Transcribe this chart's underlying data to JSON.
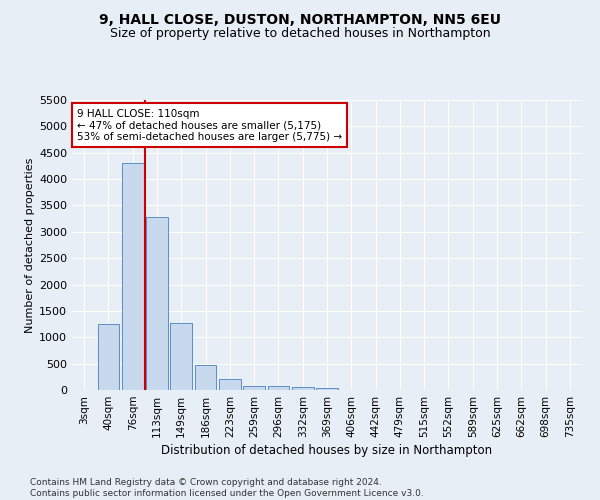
{
  "title1": "9, HALL CLOSE, DUSTON, NORTHAMPTON, NN5 6EU",
  "title2": "Size of property relative to detached houses in Northampton",
  "xlabel": "Distribution of detached houses by size in Northampton",
  "ylabel": "Number of detached properties",
  "bar_labels": [
    "3sqm",
    "40sqm",
    "76sqm",
    "113sqm",
    "149sqm",
    "186sqm",
    "223sqm",
    "259sqm",
    "296sqm",
    "332sqm",
    "369sqm",
    "406sqm",
    "442sqm",
    "479sqm",
    "515sqm",
    "552sqm",
    "589sqm",
    "625sqm",
    "662sqm",
    "698sqm",
    "735sqm"
  ],
  "bar_values": [
    0,
    1260,
    4300,
    3280,
    1270,
    470,
    210,
    80,
    70,
    50,
    45,
    0,
    0,
    0,
    0,
    0,
    0,
    0,
    0,
    0,
    0
  ],
  "bar_color": "#c9d9ed",
  "bar_edge_color": "#5b8fc9",
  "vline_x_index": 2.5,
  "vline_color": "#cc0000",
  "annotation_text": "9 HALL CLOSE: 110sqm\n← 47% of detached houses are smaller (5,175)\n53% of semi-detached houses are larger (5,775) →",
  "annotation_box_facecolor": "#ffffff",
  "annotation_box_edgecolor": "#cc0000",
  "ylim_max": 5500,
  "yticks": [
    0,
    500,
    1000,
    1500,
    2000,
    2500,
    3000,
    3500,
    4000,
    4500,
    5000,
    5500
  ],
  "bg_color": "#e8eef5",
  "footnote": "Contains HM Land Registry data © Crown copyright and database right 2024.\nContains public sector information licensed under the Open Government Licence v3.0.",
  "title1_fontsize": 10,
  "title2_fontsize": 9,
  "tick_fontsize": 7.5,
  "ytick_fontsize": 8,
  "xlabel_fontsize": 8.5,
  "ylabel_fontsize": 8,
  "annot_fontsize": 7.5,
  "footnote_fontsize": 6.5
}
